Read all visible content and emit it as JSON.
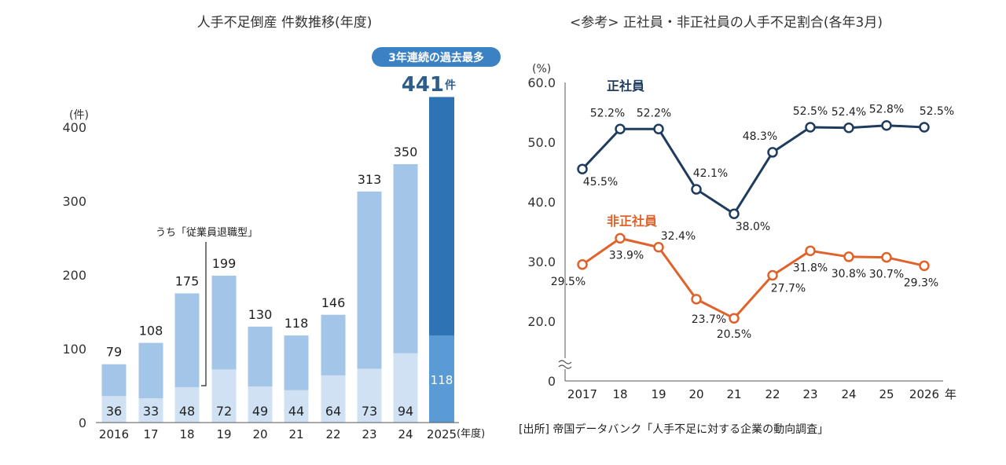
{
  "chart_data": [
    {
      "type": "bar",
      "title": "人手不足倒産 件数推移(年度)",
      "ylabel": "(件)",
      "categories": [
        "2016",
        "17",
        "18",
        "19",
        "20",
        "21",
        "22",
        "23",
        "24",
        "2025"
      ],
      "x_suffix": "(年度)",
      "ylim": [
        0,
        400
      ],
      "yticks": [
        0,
        100,
        200,
        300,
        400
      ],
      "series": [
        {
          "name": "",
          "values": [
            79,
            108,
            175,
            199,
            130,
            118,
            146,
            313,
            350,
            441
          ]
        },
        {
          "name": "うち「従業員退職型」",
          "values": [
            36,
            33,
            48,
            72,
            49,
            44,
            64,
            73,
            94,
            118
          ]
        }
      ],
      "highlight": {
        "badge": "3年連続の過去最多",
        "value_text": "441",
        "unit": "件"
      },
      "colors": {
        "total": "#a3c6e8",
        "subset": "#cfe1f3",
        "total_last": "#2e74b5",
        "subset_last": "#5a9bd5",
        "badge": "#3b82c4"
      },
      "grid": false
    },
    {
      "type": "line",
      "title": "<参考> 正社員・非正社員の人手不足割合(各年3月)",
      "ylabel": "(%)",
      "categories": [
        "2017",
        "18",
        "19",
        "20",
        "21",
        "22",
        "23",
        "24",
        "25",
        "2026"
      ],
      "x_suffix": "年",
      "ylim": [
        0,
        60
      ],
      "yticks": [
        "0",
        "20.0",
        "30.0",
        "40.0",
        "50.0",
        "60.0"
      ],
      "axis_break": true,
      "series": [
        {
          "name": "正社員",
          "values": [
            45.5,
            52.2,
            52.2,
            42.1,
            38.0,
            48.3,
            52.5,
            52.4,
            52.8,
            52.5
          ],
          "color": "#1f3c5f"
        },
        {
          "name": "非正社員",
          "values": [
            29.5,
            33.9,
            32.4,
            23.7,
            20.5,
            27.7,
            31.8,
            30.8,
            30.7,
            29.3
          ],
          "color": "#e0622a"
        }
      ],
      "grid": false
    }
  ],
  "source": "[出所] 帝国データバンク「人手不足に対する企業の動向調査」"
}
